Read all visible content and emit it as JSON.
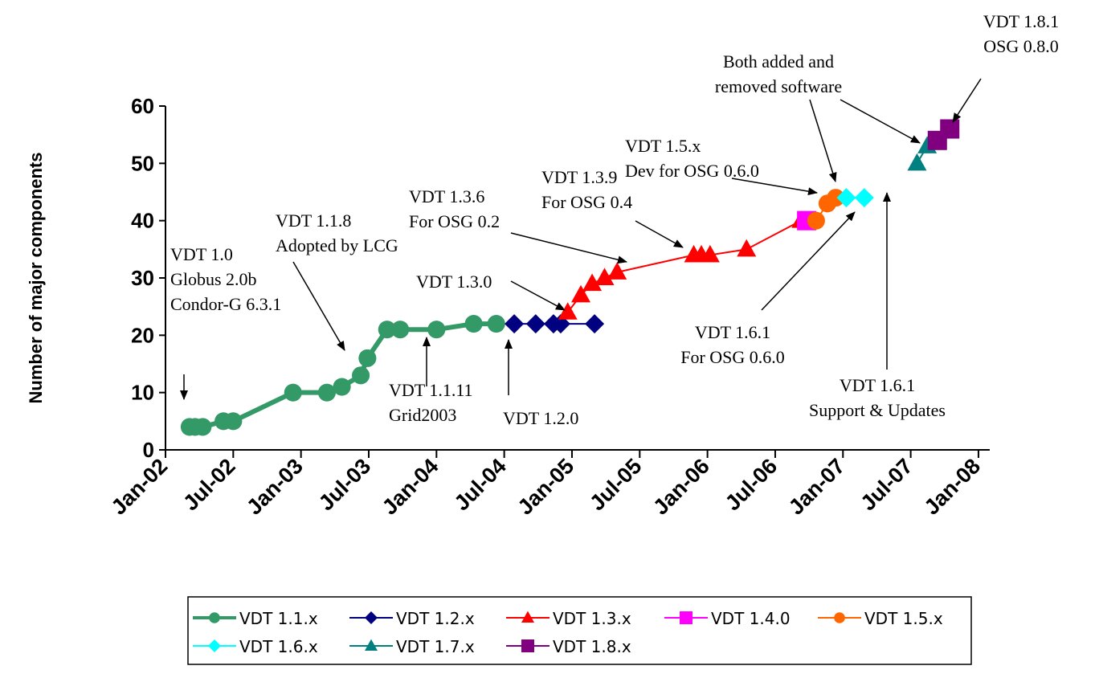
{
  "chart_data": {
    "type": "line",
    "title": "",
    "xlabel": "",
    "ylabel": "Number of major components",
    "ylim": [
      0,
      60
    ],
    "yticks": [
      0,
      10,
      20,
      30,
      40,
      50,
      60
    ],
    "xlim": [
      "2002-01",
      "2008-02"
    ],
    "xtick_labels": [
      "Jan-02",
      "Jul-02",
      "Jan-03",
      "Jul-03",
      "Jan-04",
      "Jul-04",
      "Jan-05",
      "Jul-05",
      "Jan-06",
      "Jul-06",
      "Jan-07",
      "Jul-07",
      "Jan-08"
    ],
    "grid": false,
    "legend_position": "bottom",
    "series": [
      {
        "name": "VDT 1.1.x",
        "color": "#339966",
        "marker": "circle",
        "points": [
          [
            "2002-03-05",
            4
          ],
          [
            "2002-03-20",
            4
          ],
          [
            "2002-04-10",
            4
          ],
          [
            "2002-06-05",
            5
          ],
          [
            "2002-07-01",
            5
          ],
          [
            "2002-12-10",
            10
          ],
          [
            "2003-03-10",
            10
          ],
          [
            "2003-04-20",
            11
          ],
          [
            "2003-06-10",
            13
          ],
          [
            "2003-06-28",
            16
          ],
          [
            "2003-08-20",
            21
          ],
          [
            "2003-09-25",
            21
          ],
          [
            "2004-01-01",
            21
          ],
          [
            "2004-04-10",
            22
          ],
          [
            "2004-06-10",
            22
          ]
        ]
      },
      {
        "name": "VDT 1.2.x",
        "color": "#000080",
        "marker": "diamond",
        "points": [
          [
            "2004-07-28",
            22
          ],
          [
            "2004-09-25",
            22
          ],
          [
            "2004-11-12",
            22
          ],
          [
            "2004-12-01",
            22
          ],
          [
            "2005-03-01",
            22
          ]
        ]
      },
      {
        "name": "VDT 1.3.x",
        "color": "#ff0000",
        "marker": "triangle",
        "points": [
          [
            "2004-12-20",
            24
          ],
          [
            "2005-01-25",
            27
          ],
          [
            "2005-02-25",
            29
          ],
          [
            "2005-03-28",
            30
          ],
          [
            "2005-05-01",
            31
          ],
          [
            "2005-11-25",
            34
          ],
          [
            "2005-12-15",
            34
          ],
          [
            "2006-01-08",
            34
          ],
          [
            "2006-04-15",
            35
          ],
          [
            "2006-09-10",
            40
          ]
        ]
      },
      {
        "name": "VDT 1.4.0",
        "color": "#ff00ff",
        "marker": "square",
        "points": [
          [
            "2006-09-25",
            40
          ]
        ]
      },
      {
        "name": "VDT 1.5.x",
        "color": "#ff6600",
        "marker": "circle",
        "points": [
          [
            "2006-10-20",
            40
          ],
          [
            "2006-11-20",
            43
          ],
          [
            "2006-12-12",
            44
          ]
        ]
      },
      {
        "name": "VDT 1.6.x",
        "color": "#00ffff",
        "marker": "diamond",
        "points": [
          [
            "2007-01-10",
            44
          ],
          [
            "2007-02-28",
            44
          ]
        ]
      },
      {
        "name": "VDT 1.7.x",
        "color": "#008080",
        "marker": "triangle",
        "points": [
          [
            "2007-07-18",
            50
          ],
          [
            "2007-08-15",
            53
          ]
        ]
      },
      {
        "name": "VDT 1.8.x",
        "color": "#800080",
        "marker": "square",
        "points": [
          [
            "2007-09-12",
            54
          ],
          [
            "2007-10-15",
            56
          ]
        ]
      }
    ],
    "annotations": [
      {
        "lines": [
          "VDT 1.0",
          "Globus 2.0b",
          "Condor-G 6.3.1"
        ]
      },
      {
        "lines": [
          "VDT 1.1.8",
          "Adopted by LCG"
        ]
      },
      {
        "lines": [
          "VDT 1.1.11",
          "Grid2003"
        ]
      },
      {
        "lines": [
          "VDT 1.2.0"
        ]
      },
      {
        "lines": [
          "VDT 1.3.0"
        ]
      },
      {
        "lines": [
          "VDT 1.3.6",
          "For OSG 0.2"
        ]
      },
      {
        "lines": [
          "VDT 1.3.9",
          "For OSG 0.4"
        ]
      },
      {
        "lines": [
          "VDT 1.5.x",
          "Dev for OSG 0.6.0"
        ]
      },
      {
        "lines": [
          "Both added and",
          "removed software"
        ]
      },
      {
        "lines": [
          "VDT 1.8.1",
          "OSG 0.8.0"
        ]
      },
      {
        "lines": [
          "VDT 1.6.1",
          "For OSG 0.6.0"
        ]
      },
      {
        "lines": [
          "VDT 1.6.1",
          "Support & Updates"
        ]
      }
    ]
  }
}
